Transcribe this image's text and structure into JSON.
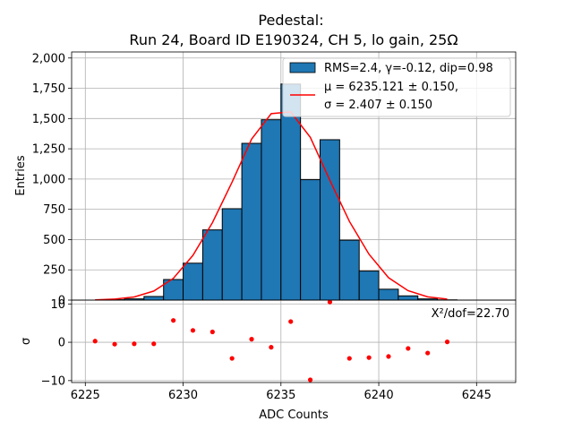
{
  "chart_data": [
    {
      "type": "bar",
      "title_line1": "Pedestal:",
      "title_line2": "Run 24, Board ID E190324, CH 5, lo gain, 25Ω",
      "ylabel": "Entries",
      "xlim": [
        6224.3,
        6247.0
      ],
      "ylim": [
        0,
        2050
      ],
      "yticks": [
        0,
        250,
        500,
        750,
        1000,
        1250,
        1500,
        1750,
        2000
      ],
      "grid": true,
      "legend_placement": "top-right",
      "histogram": {
        "name": "RMS=2.4, γ=-0.12, dip=0.98",
        "color": "#1f77b4",
        "bin_width": 1,
        "bin_centers": [
          6225.5,
          6226.5,
          6227.5,
          6228.5,
          6229.5,
          6230.5,
          6231.5,
          6232.5,
          6233.5,
          6234.5,
          6235.5,
          6236.5,
          6237.5,
          6238.5,
          6239.5,
          6240.5,
          6241.5,
          6242.5,
          6243.5
        ],
        "values": [
          0,
          3,
          10,
          30,
          170,
          305,
          580,
          755,
          1295,
          1490,
          1785,
          995,
          1325,
          495,
          240,
          90,
          35,
          10,
          2
        ]
      },
      "fit": {
        "name_line1": "μ = 6235.121 ± 0.150,",
        "name_line2": "σ = 2.407 ± 0.150",
        "color": "#ff0000",
        "x": [
          6225.5,
          6226.5,
          6227.5,
          6228.5,
          6229.5,
          6230.5,
          6231.5,
          6232.5,
          6233.5,
          6234.5,
          6235.5,
          6236.5,
          6237.5,
          6238.5,
          6239.5,
          6240.5,
          6241.5,
          6242.5,
          6243.5
        ],
        "y": [
          2,
          8,
          26,
          75,
          180,
          370,
          640,
          975,
          1330,
          1540,
          1555,
          1345,
          990,
          650,
          380,
          185,
          78,
          27,
          8
        ]
      }
    },
    {
      "type": "scatter",
      "xlabel": "ADC Counts",
      "ylabel": "σ",
      "ylim": [
        -10.5,
        11
      ],
      "yticks": [
        -10,
        0,
        10
      ],
      "xticks": [
        6225,
        6230,
        6235,
        6240,
        6245
      ],
      "xlim": [
        6224.3,
        6247.0
      ],
      "grid": true,
      "annotation": "X²/dof=22.70",
      "color": "#ff0000",
      "x": [
        6225.5,
        6226.5,
        6227.5,
        6228.5,
        6229.5,
        6230.5,
        6231.5,
        6232.5,
        6233.5,
        6234.5,
        6235.5,
        6236.5,
        6237.5,
        6238.5,
        6239.5,
        6240.5,
        6241.5,
        6242.5,
        6243.5
      ],
      "y": [
        0.3,
        -0.5,
        -0.4,
        -0.4,
        5.7,
        3.1,
        2.7,
        -4.2,
        0.8,
        -1.3,
        5.4,
        -9.8,
        10.5,
        -4.2,
        -4.0,
        -3.7,
        -1.6,
        -2.8,
        0.1
      ]
    }
  ]
}
